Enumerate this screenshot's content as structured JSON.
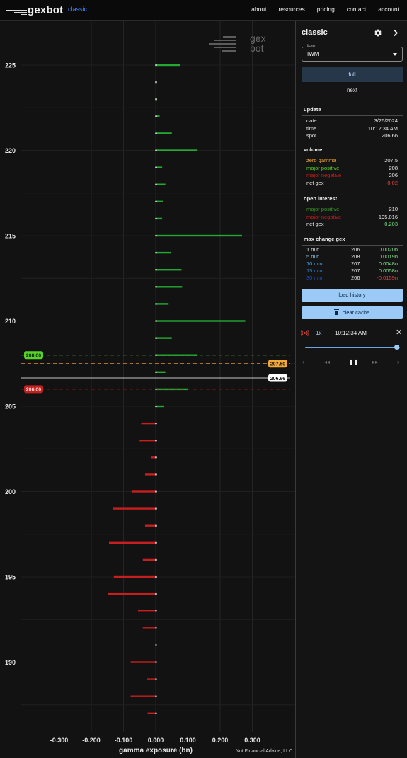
{
  "nav": {
    "brand": "gexbot",
    "subtitle": "classic",
    "links": [
      "about",
      "resources",
      "pricing",
      "contact",
      "account"
    ]
  },
  "watermark": {
    "line1": "gex",
    "line2": "bot"
  },
  "footer_note": "Not Financial Advice, LLC",
  "sidebar": {
    "title": "classic",
    "ticker_label": "ticker",
    "ticker_value": "IWM",
    "full_label": "full",
    "next_label": "next",
    "update": {
      "title": "update",
      "rows": [
        {
          "key": "date",
          "value": "3/26/2024"
        },
        {
          "key": "time",
          "value": "10:12:34 AM"
        },
        {
          "key": "spot",
          "value": "206.66"
        }
      ]
    },
    "volume": {
      "title": "volume",
      "rows": [
        {
          "key": "zero gamma",
          "value": "207.5",
          "color": "#f2a93b"
        },
        {
          "key": "major positive",
          "value": "208",
          "color": "#58d12a"
        },
        {
          "key": "major negative",
          "value": "206",
          "color": "#c0201e"
        },
        {
          "key": "net gex",
          "value": "-0.02",
          "color": "#e8e8e8",
          "value_color": "#e0453e"
        }
      ]
    },
    "open_interest": {
      "title": "open interest",
      "rows": [
        {
          "key": "major positive",
          "value": "210",
          "color": "#3a9a26"
        },
        {
          "key": "major negative",
          "value": "195.016",
          "color": "#c0201e"
        },
        {
          "key": "net gex",
          "value": "0.203",
          "color": "#e8e8e8",
          "value_color": "#6ee07a"
        }
      ]
    },
    "max_change": {
      "title": "max change gex",
      "rows": [
        {
          "key": "1 min",
          "strike": "206",
          "value": "0.0020n",
          "color": "#e8e8e8",
          "value_color": "#7fe08a"
        },
        {
          "key": "5 min",
          "strike": "208",
          "value": "0.0019n",
          "color": "#9ccaf7",
          "value_color": "#7fe08a"
        },
        {
          "key": "10 min",
          "strike": "207",
          "value": "0.0048n",
          "color": "#3fa5f0",
          "value_color": "#7fe08a"
        },
        {
          "key": "15 min",
          "strike": "207",
          "value": "0.0058n",
          "color": "#2a7fd6",
          "value_color": "#7fe08a"
        },
        {
          "key": "30 min",
          "strike": "206",
          "value": "-0.0159n",
          "color": "#1f4fb4",
          "value_color": "#e0453e"
        }
      ]
    },
    "load_history_label": "load history",
    "clear_cache_label": "clear cache",
    "player": {
      "speed": "1x",
      "time": "10:12:34 AM",
      "progress": 0.97
    }
  },
  "colors": {
    "positive": "#23a832",
    "negative": "#c51f1f",
    "zero_gamma": "#f2a93b",
    "major_positive": "#58d12a",
    "major_negative": "#c0201e",
    "spot": "#e8e8e8"
  },
  "chart_data": {
    "type": "bar",
    "orientation": "horizontal",
    "xlabel": "gamma exposure (bn)",
    "ylabel": "",
    "xlim": [
      -0.35,
      0.37
    ],
    "ylim": [
      186.5,
      226.5
    ],
    "xticks": [
      -0.3,
      -0.2,
      -0.1,
      0.0,
      0.1,
      0.2,
      0.3
    ],
    "xtick_labels": [
      "-0.300",
      "-0.200",
      "-0.100",
      "0.000",
      "0.100",
      "0.200",
      "0.300"
    ],
    "yticks": [
      190,
      195,
      200,
      205,
      210,
      215,
      220,
      225
    ],
    "grid": true,
    "strikes": [
      225,
      224,
      223,
      222,
      221,
      220,
      219,
      218,
      217,
      216,
      215,
      214,
      213,
      212,
      211,
      210,
      209,
      208,
      207,
      206,
      205,
      204,
      203,
      202,
      201,
      200,
      199,
      198,
      197,
      196,
      195,
      194,
      193,
      192,
      191,
      190,
      189,
      188,
      187
    ],
    "gex": [
      0.075,
      0.002,
      0.004,
      0.012,
      0.05,
      0.13,
      0.02,
      0.03,
      0.022,
      0.02,
      0.268,
      0.048,
      0.08,
      0.082,
      0.04,
      0.278,
      0.05,
      0.13,
      0.03,
      0.1,
      0.025,
      -0.045,
      -0.05,
      -0.015,
      -0.033,
      -0.075,
      -0.133,
      -0.033,
      -0.145,
      -0.04,
      -0.13,
      -0.148,
      -0.055,
      -0.04,
      -0.002,
      -0.078,
      -0.028,
      -0.078,
      -0.025
    ],
    "lines": [
      {
        "label": "208.00",
        "value": 208.0,
        "type": "major positive"
      },
      {
        "label": "207.50",
        "value": 207.5,
        "type": "zero gamma"
      },
      {
        "label": "206.66",
        "value": 206.66,
        "type": "spot"
      },
      {
        "label": "206.00",
        "value": 206.0,
        "type": "major negative"
      }
    ]
  }
}
